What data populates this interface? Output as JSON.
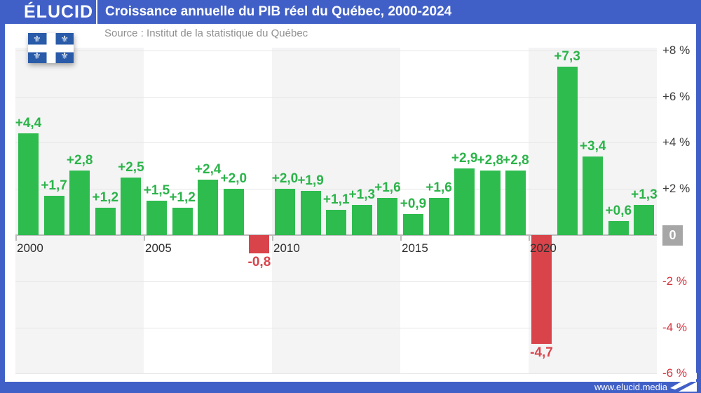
{
  "header": {
    "brand": "ÉLUCID",
    "title": "Croissance annuelle du PIB réel du Québec, 2000-2024"
  },
  "source_line": "Source : Institut de la statistique du Québec",
  "footer": {
    "url": "www.elucid.media"
  },
  "colors": {
    "brand_blue": "#4160c7",
    "bar_green": "#2ebc4e",
    "label_green": "#2cb44a",
    "bar_red": "#d9434a",
    "axis_text": "#3c3c3c",
    "axis_red": "#d5343f",
    "year_text": "#2f2f2f",
    "grid": "#e6e6e6",
    "axis_line": "#bcbcbc",
    "stripe": "#f4f4f5",
    "zero_box": "#a6a6a6",
    "source_text": "#8f8f8f",
    "flag_blue": "#2a5ba9"
  },
  "chart_data": {
    "type": "bar",
    "title": "Croissance annuelle du PIB réel du Québec, 2000-2024",
    "source": "Institut de la statistique du Québec",
    "unit": "%",
    "categories": [
      2000,
      2001,
      2002,
      2003,
      2004,
      2005,
      2006,
      2007,
      2008,
      2009,
      2010,
      2011,
      2012,
      2013,
      2014,
      2015,
      2016,
      2017,
      2018,
      2019,
      2020,
      2021,
      2022,
      2023,
      2024
    ],
    "values": [
      4.4,
      1.7,
      2.8,
      1.2,
      2.5,
      1.5,
      1.2,
      2.4,
      2.0,
      -0.8,
      2.0,
      1.9,
      1.1,
      1.3,
      1.6,
      0.9,
      1.6,
      2.9,
      2.8,
      2.8,
      -4.7,
      7.3,
      3.4,
      0.6,
      1.3
    ],
    "bar_labels": [
      "+4,4",
      "+1,7",
      "+2,8",
      "+1,2",
      "+2,5",
      "+1,5",
      "+1,2",
      "+2,4",
      "+2,0",
      "-0,8",
      "+2,0",
      "+1,9",
      "+1,1",
      "+1,3",
      "+1,6",
      "+0,9",
      "+1,6",
      "+2,9",
      "+2,8",
      "+2,8",
      "-4,7",
      "+7,3",
      "+3,4",
      "+0,6",
      "+1,3"
    ],
    "x_ticks": [
      "2000",
      "2005",
      "2010",
      "2015",
      "2020"
    ],
    "y_ticks": [
      {
        "label": "+8 %",
        "value": 8
      },
      {
        "label": "+6 %",
        "value": 6
      },
      {
        "label": "+4 %",
        "value": 4
      },
      {
        "label": "+2 %",
        "value": 2
      },
      {
        "label": "0",
        "value": 0,
        "boxed": true
      },
      {
        "label": "-2 %",
        "value": -2
      },
      {
        "label": "-4 %",
        "value": -4
      },
      {
        "label": "-6 %",
        "value": -6
      }
    ],
    "ylim": [
      -6,
      8.1
    ],
    "grid": true,
    "legend": "none",
    "positive_color": "#2ebc4e",
    "negative_color": "#d9434a",
    "band_ranges_years": [
      [
        2000,
        2005
      ],
      [
        2010,
        2015
      ],
      [
        2020,
        2025
      ]
    ]
  }
}
